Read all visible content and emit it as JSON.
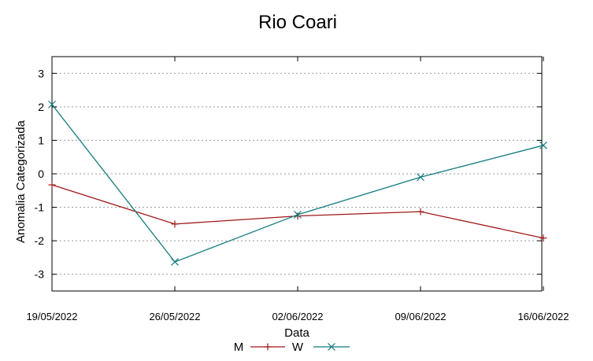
{
  "chart_data": {
    "type": "line",
    "title": "Rio Coari",
    "xlabel": "Data",
    "ylabel": "Anomalia Categorizada",
    "categories": [
      "19/05/2022",
      "26/05/2022",
      "02/06/2022",
      "09/06/2022",
      "16/06/2022"
    ],
    "ylim": [
      -3.5,
      3.5
    ],
    "yticks": [
      "3",
      "2",
      "1",
      "0",
      "-1",
      "-2",
      "-3"
    ],
    "grid": true,
    "legend_position": "bottom-center",
    "series": [
      {
        "name": "M",
        "color": "#a01818",
        "marker": "plus",
        "values": [
          -0.33,
          -1.5,
          -1.26,
          -1.13,
          -1.92
        ]
      },
      {
        "name": "W",
        "color": "#127a7f",
        "marker": "x",
        "values": [
          2.07,
          -2.63,
          -1.22,
          -0.1,
          0.85
        ]
      }
    ]
  }
}
